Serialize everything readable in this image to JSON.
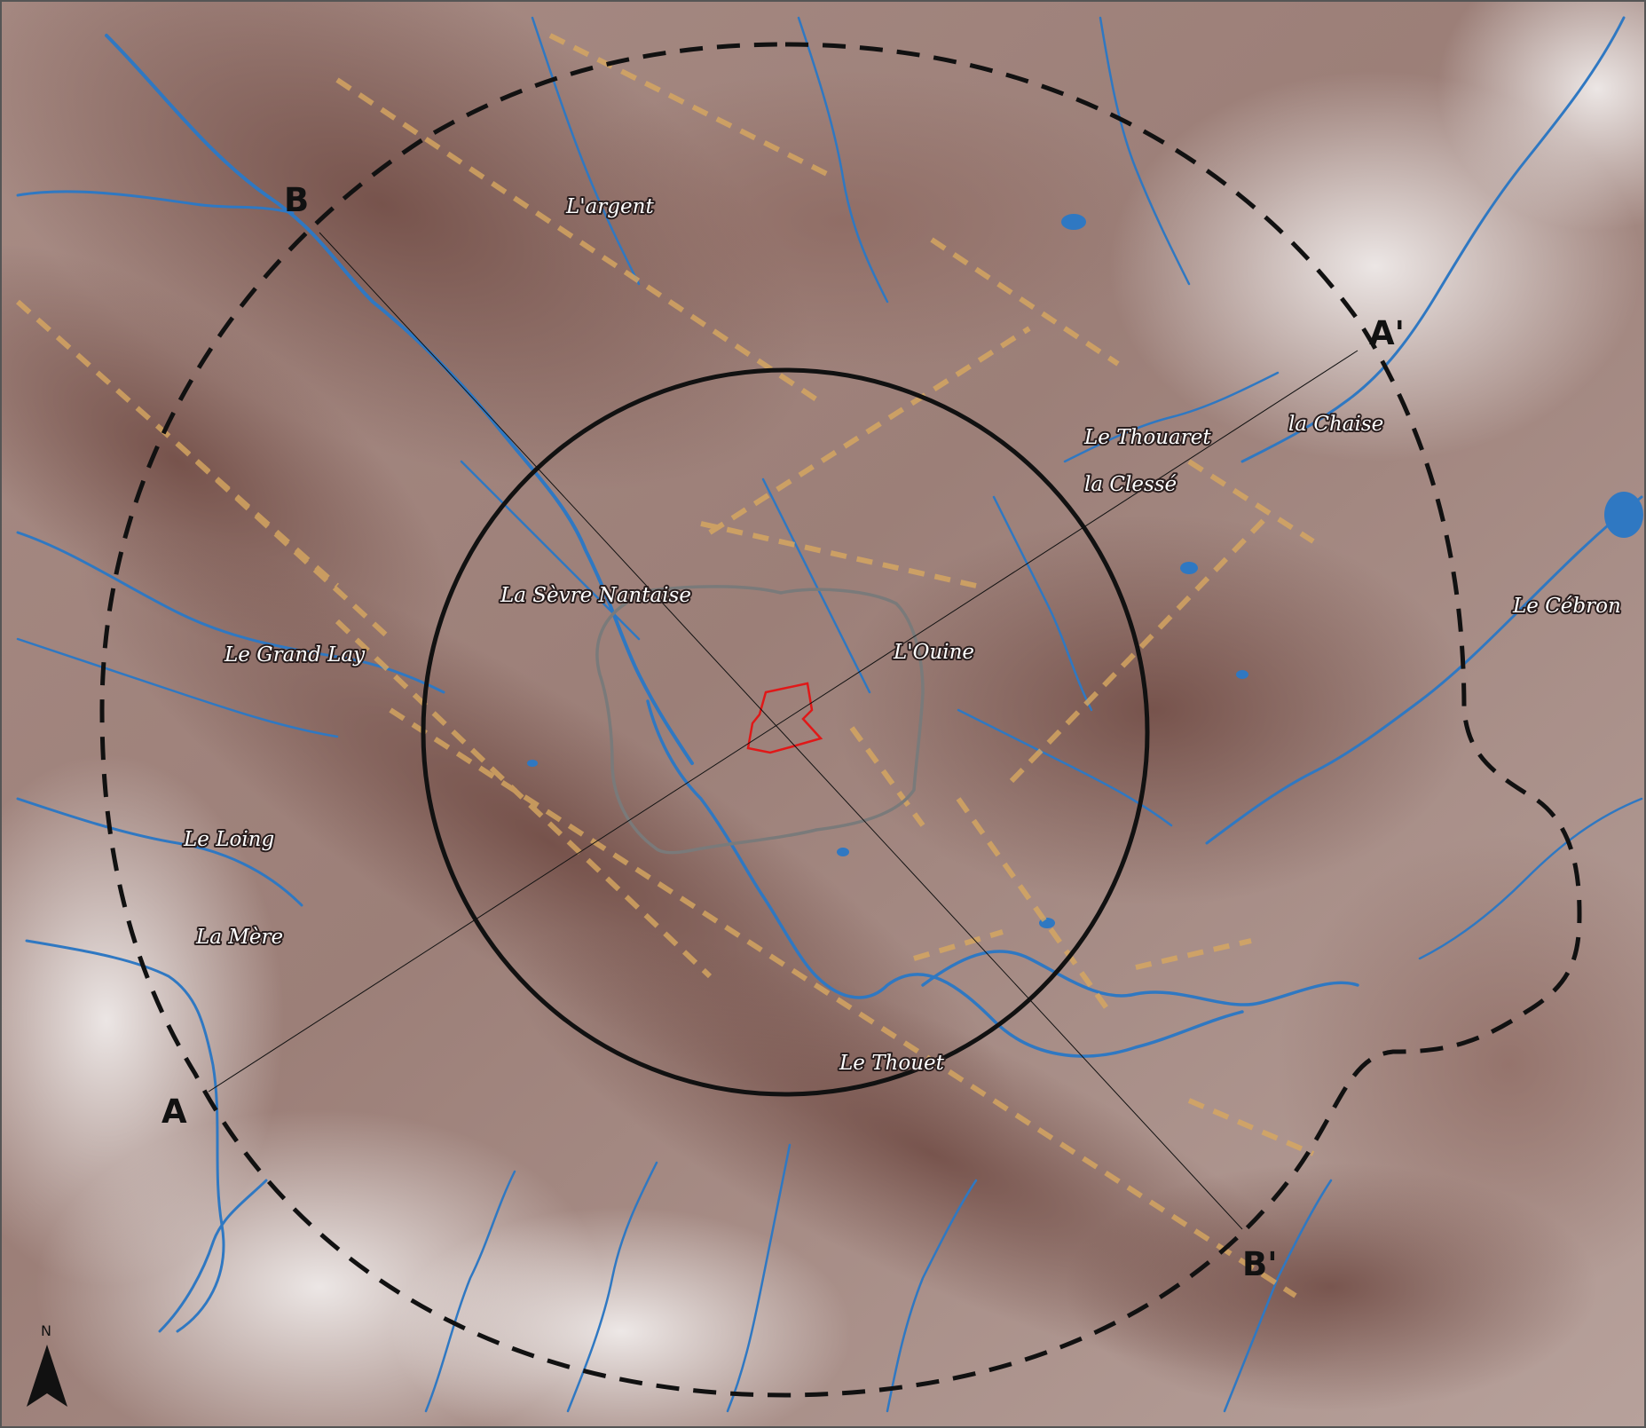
{
  "colors": {
    "relief_high": "#6f4a43",
    "relief_low": "#f3efec",
    "river": "#2f78c2",
    "fault": "#d8a860",
    "ring": "#111111",
    "site_outline": "#e01818",
    "inner_zone": "#7a7a7a"
  },
  "map": {
    "river_labels": [
      "L'argent",
      "Le Thouaret",
      "la Chaise",
      "la Clessé",
      "La Sèvre Nantaise",
      "L'Ouine",
      "Le Grand Lay",
      "Le Cébron",
      "Le Loing",
      "La Mère",
      "Le Thouet"
    ],
    "profile_labels": {
      "a_start": "A",
      "a_end": "A'",
      "b_start": "B",
      "b_end": "B'"
    },
    "north_arrow": {
      "label": "N",
      "icon": "north-arrow-icon"
    }
  }
}
